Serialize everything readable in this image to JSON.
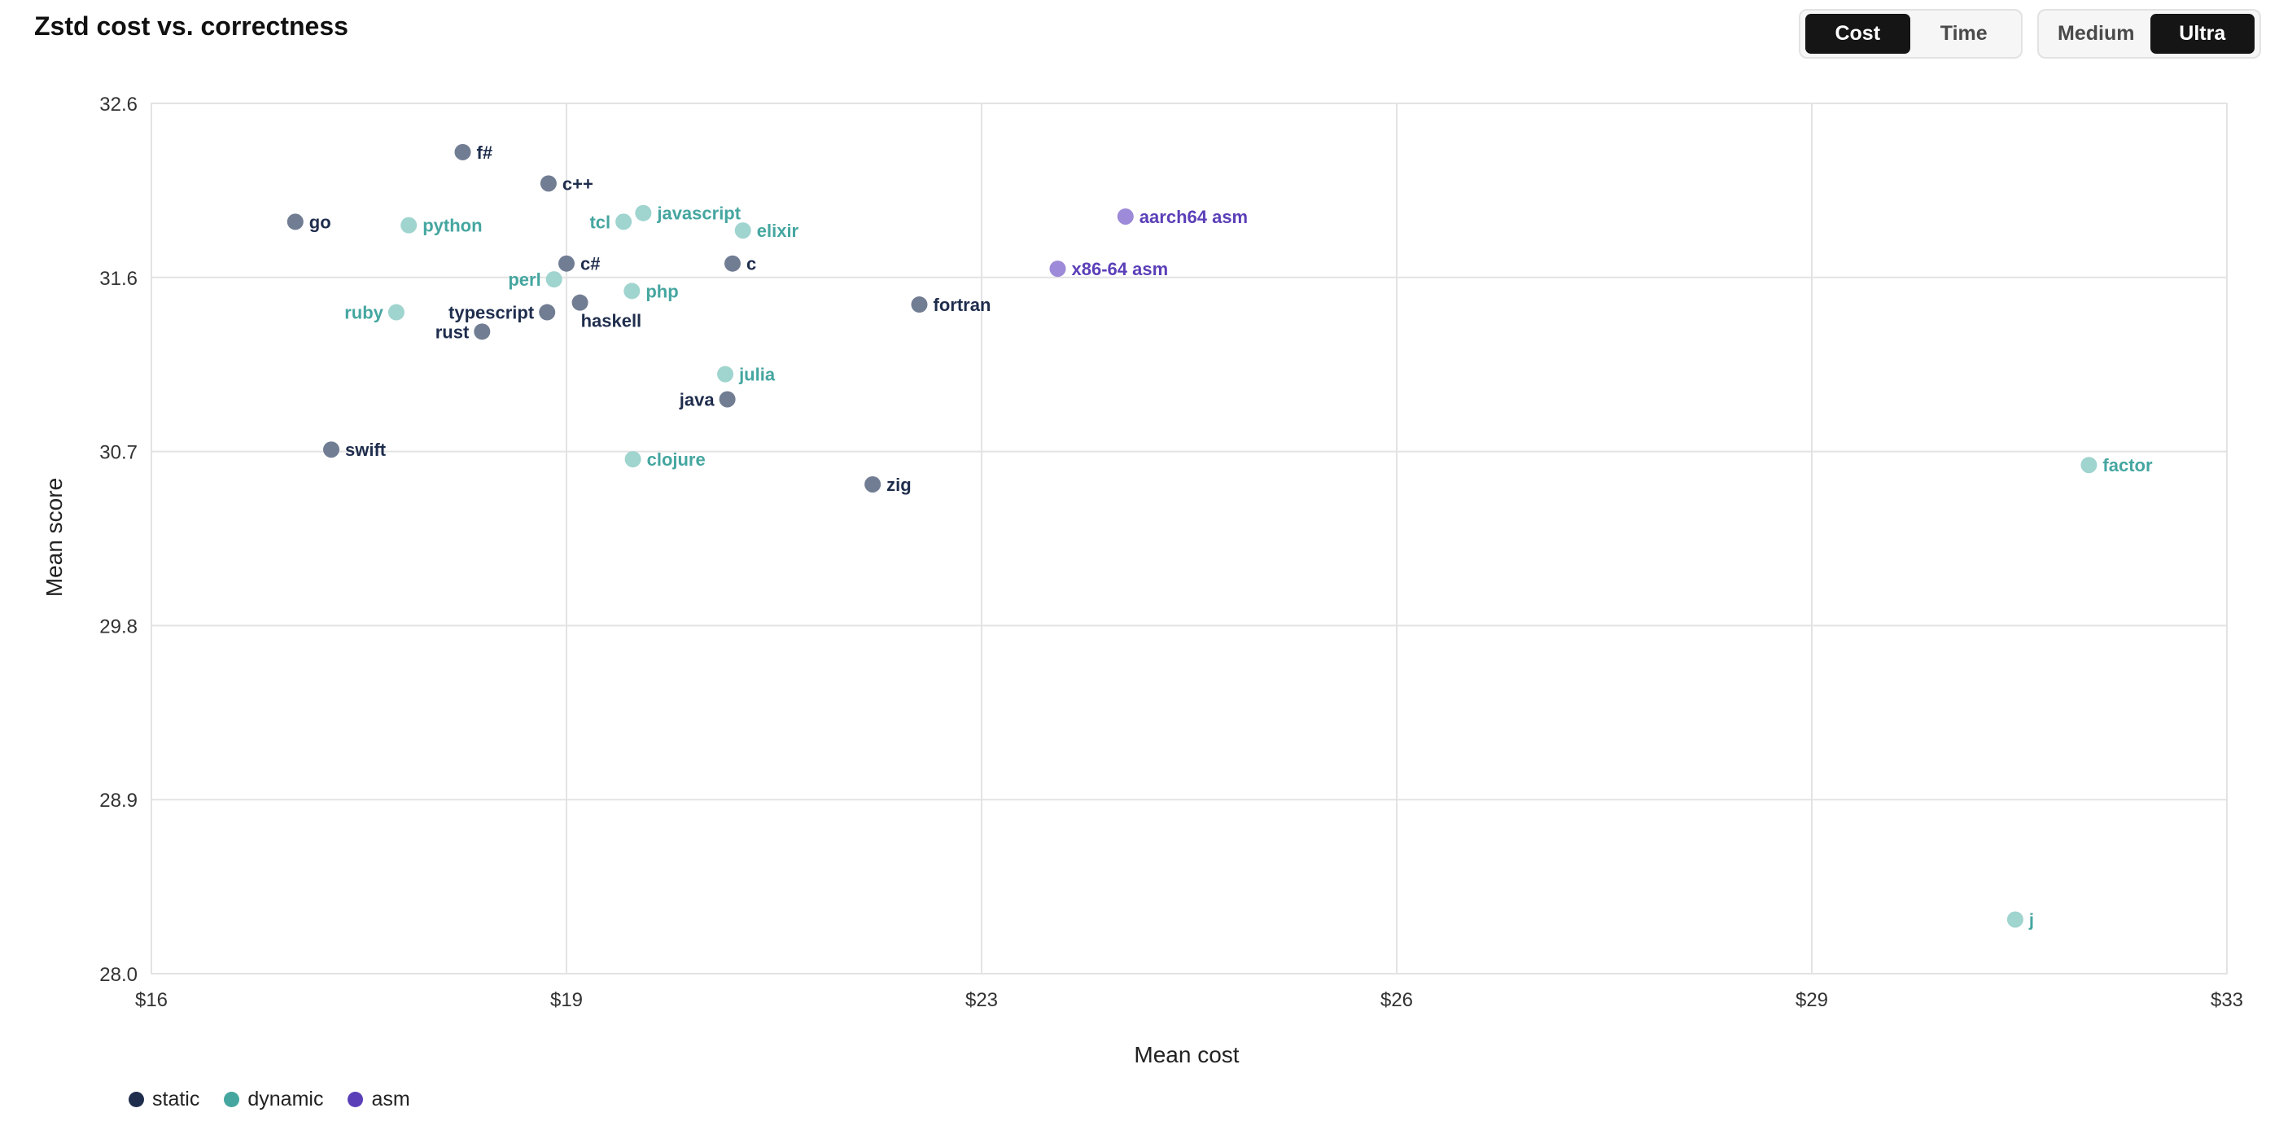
{
  "header": {
    "title": "Zstd cost vs. correctness"
  },
  "toggles": {
    "metric": {
      "options": [
        "Cost",
        "Time"
      ],
      "selected": "Cost"
    },
    "size": {
      "options": [
        "Medium",
        "Ultra"
      ],
      "selected": "Ultra"
    }
  },
  "colors": {
    "static_point": "#717d93",
    "static_label": "#1f2d4d",
    "dynamic_point": "#9fd4cf",
    "dynamic_label": "#45a6a0",
    "asm_point": "#9d8ad8",
    "asm_label": "#5b3fb8",
    "grid": "#e3e3e3"
  },
  "chart_data": {
    "type": "scatter",
    "title": "Zstd cost vs. correctness",
    "xlabel": "Mean cost",
    "ylabel": "Mean score",
    "xlim": [
      16,
      33
    ],
    "ylim": [
      28.0,
      32.6
    ],
    "xticks": [
      16,
      19,
      23,
      26,
      29,
      33
    ],
    "xtick_labels": [
      "$16",
      "$19",
      "$23",
      "$26",
      "$29",
      "$33"
    ],
    "yticks": [
      28.0,
      28.9,
      29.8,
      30.7,
      31.6,
      32.6
    ],
    "ytick_labels": [
      "28.0",
      "28.9",
      "29.8",
      "30.7",
      "31.6",
      "32.6"
    ],
    "grid": true,
    "legend_position": "bottom-left",
    "series": [
      {
        "name": "static",
        "points": [
          {
            "label": "f#",
            "x": 18.25,
            "y": 32.32
          },
          {
            "label": "c++",
            "x": 18.87,
            "y": 32.14
          },
          {
            "label": "go",
            "x": 17.04,
            "y": 31.92
          },
          {
            "label": "c#",
            "x": 19.0,
            "y": 31.68
          },
          {
            "label": "c",
            "x": 20.6,
            "y": 31.68
          },
          {
            "label": "typescript",
            "x": 18.86,
            "y": 31.42
          },
          {
            "label": "haskell",
            "x": 19.13,
            "y": 31.47
          },
          {
            "label": "rust",
            "x": 18.39,
            "y": 31.32
          },
          {
            "label": "fortran",
            "x": 22.4,
            "y": 31.46
          },
          {
            "label": "java",
            "x": 20.55,
            "y": 30.97
          },
          {
            "label": "swift",
            "x": 17.3,
            "y": 30.71
          },
          {
            "label": "zig",
            "x": 21.95,
            "y": 30.53
          }
        ]
      },
      {
        "name": "dynamic",
        "points": [
          {
            "label": "python",
            "x": 17.86,
            "y": 31.9
          },
          {
            "label": "tcl",
            "x": 19.55,
            "y": 31.92
          },
          {
            "label": "javascript",
            "x": 19.74,
            "y": 31.97
          },
          {
            "label": "elixir",
            "x": 20.7,
            "y": 31.87
          },
          {
            "label": "perl",
            "x": 18.91,
            "y": 31.59
          },
          {
            "label": "php",
            "x": 19.63,
            "y": 31.53
          },
          {
            "label": "ruby",
            "x": 17.77,
            "y": 31.42
          },
          {
            "label": "julia",
            "x": 20.53,
            "y": 31.1
          },
          {
            "label": "clojure",
            "x": 19.64,
            "y": 30.66
          },
          {
            "label": "factor",
            "x": 31.67,
            "y": 30.63
          },
          {
            "label": "j",
            "x": 30.96,
            "y": 28.28
          }
        ]
      },
      {
        "name": "asm",
        "points": [
          {
            "label": "aarch64 asm",
            "x": 24.04,
            "y": 31.95
          },
          {
            "label": "x86-64 asm",
            "x": 23.55,
            "y": 31.65
          }
        ]
      }
    ]
  }
}
